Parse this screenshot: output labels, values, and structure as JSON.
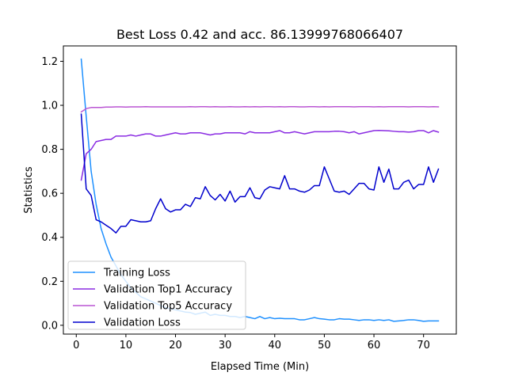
{
  "chart_data": {
    "type": "line",
    "title": "Best Loss 0.42 and acc. 86.13999768066407",
    "xlabel": "Elapsed Time (Min)",
    "ylabel": "Statistics",
    "xlim": [
      -2.6,
      76.6
    ],
    "ylim": [
      -0.04,
      1.27
    ],
    "xticks": [
      0,
      10,
      20,
      30,
      40,
      50,
      60,
      70
    ],
    "xtick_labels": [
      "0",
      "10",
      "20",
      "30",
      "40",
      "50",
      "60",
      "70"
    ],
    "yticks": [
      0.0,
      0.2,
      0.4,
      0.6,
      0.8,
      1.0,
      1.2
    ],
    "ytick_labels": [
      "0.0",
      "0.2",
      "0.4",
      "0.6",
      "0.8",
      "1.0",
      "1.2"
    ],
    "grid": false,
    "legend_position": "lower-left",
    "x": [
      1,
      2,
      3,
      4,
      5,
      6,
      7,
      8,
      9,
      10,
      11,
      12,
      13,
      14,
      15,
      16,
      17,
      18,
      19,
      20,
      21,
      22,
      23,
      24,
      25,
      26,
      27,
      28,
      29,
      30,
      31,
      32,
      33,
      34,
      35,
      36,
      37,
      38,
      39,
      40,
      41,
      42,
      43,
      44,
      45,
      46,
      47,
      48,
      49,
      50,
      51,
      52,
      53,
      54,
      55,
      56,
      57,
      58,
      59,
      60,
      61,
      62,
      63,
      64,
      65,
      66,
      67,
      68,
      69,
      70,
      71,
      72,
      73
    ],
    "series": [
      {
        "name": "Training Loss",
        "color": "#1e90ff",
        "values": [
          1.21,
          0.95,
          0.7,
          0.55,
          0.44,
          0.37,
          0.31,
          0.27,
          0.23,
          0.2,
          0.17,
          0.15,
          0.13,
          0.12,
          0.11,
          0.1,
          0.09,
          0.08,
          0.075,
          0.07,
          0.065,
          0.06,
          0.058,
          0.05,
          0.055,
          0.06,
          0.045,
          0.05,
          0.045,
          0.045,
          0.04,
          0.04,
          0.035,
          0.04,
          0.035,
          0.03,
          0.04,
          0.03,
          0.035,
          0.03,
          0.032,
          0.03,
          0.03,
          0.03,
          0.025,
          0.025,
          0.03,
          0.035,
          0.03,
          0.028,
          0.025,
          0.025,
          0.03,
          0.028,
          0.028,
          0.025,
          0.022,
          0.025,
          0.025,
          0.022,
          0.025,
          0.022,
          0.025,
          0.018,
          0.02,
          0.022,
          0.025,
          0.025,
          0.022,
          0.018,
          0.02,
          0.02,
          0.02
        ]
      },
      {
        "name": "Validation Top1 Accuracy",
        "color": "#8a2be2",
        "values": [
          0.66,
          0.78,
          0.8,
          0.835,
          0.84,
          0.845,
          0.845,
          0.86,
          0.86,
          0.86,
          0.865,
          0.86,
          0.865,
          0.87,
          0.87,
          0.86,
          0.86,
          0.865,
          0.87,
          0.875,
          0.87,
          0.87,
          0.875,
          0.875,
          0.875,
          0.87,
          0.865,
          0.87,
          0.87,
          0.875,
          0.875,
          0.875,
          0.875,
          0.87,
          0.88,
          0.875,
          0.875,
          0.875,
          0.875,
          0.88,
          0.885,
          0.875,
          0.875,
          0.88,
          0.875,
          0.87,
          0.875,
          0.88,
          0.88,
          0.88,
          0.88,
          0.882,
          0.882,
          0.88,
          0.875,
          0.88,
          0.87,
          0.875,
          0.88,
          0.885,
          0.886,
          0.885,
          0.884,
          0.882,
          0.88,
          0.88,
          0.878,
          0.88,
          0.885,
          0.885,
          0.875,
          0.885,
          0.878
        ]
      },
      {
        "name": "Validation Top5 Accuracy",
        "color": "#ba55d3",
        "values": [
          0.97,
          0.985,
          0.99,
          0.99,
          0.99,
          0.992,
          0.992,
          0.993,
          0.993,
          0.992,
          0.993,
          0.993,
          0.993,
          0.994,
          0.993,
          0.993,
          0.993,
          0.993,
          0.993,
          0.993,
          0.993,
          0.993,
          0.994,
          0.993,
          0.994,
          0.994,
          0.993,
          0.994,
          0.993,
          0.993,
          0.994,
          0.993,
          0.993,
          0.994,
          0.993,
          0.994,
          0.993,
          0.994,
          0.994,
          0.993,
          0.994,
          0.993,
          0.994,
          0.994,
          0.993,
          0.993,
          0.994,
          0.994,
          0.993,
          0.994,
          0.993,
          0.994,
          0.994,
          0.994,
          0.994,
          0.993,
          0.994,
          0.994,
          0.994,
          0.993,
          0.994,
          0.993,
          0.994,
          0.994,
          0.994,
          0.994,
          0.993,
          0.994,
          0.994,
          0.994,
          0.993,
          0.994,
          0.993
        ]
      },
      {
        "name": "Validation Loss",
        "color": "#0000cd",
        "values": [
          0.96,
          0.62,
          0.59,
          0.48,
          0.47,
          0.455,
          0.44,
          0.42,
          0.45,
          0.45,
          0.48,
          0.475,
          0.47,
          0.47,
          0.475,
          0.53,
          0.575,
          0.53,
          0.515,
          0.525,
          0.525,
          0.55,
          0.54,
          0.58,
          0.575,
          0.63,
          0.59,
          0.57,
          0.595,
          0.565,
          0.61,
          0.56,
          0.585,
          0.585,
          0.625,
          0.58,
          0.575,
          0.615,
          0.63,
          0.625,
          0.62,
          0.68,
          0.62,
          0.62,
          0.61,
          0.605,
          0.615,
          0.635,
          0.635,
          0.72,
          0.665,
          0.61,
          0.605,
          0.61,
          0.595,
          0.62,
          0.645,
          0.645,
          0.62,
          0.615,
          0.72,
          0.65,
          0.71,
          0.62,
          0.62,
          0.65,
          0.66,
          0.62,
          0.64,
          0.64,
          0.72,
          0.65,
          0.71
        ]
      }
    ]
  }
}
